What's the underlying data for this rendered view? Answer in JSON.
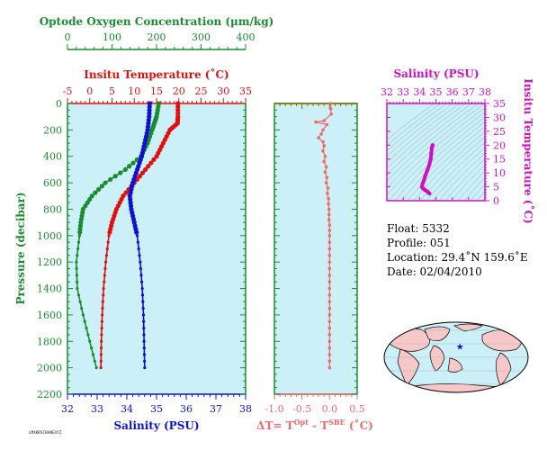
{
  "colors": {
    "oxygen": "#1a8c2e",
    "temperature": "#e01010",
    "salinity": "#1010d0",
    "delta": "#f06a6a",
    "ts": "#d010c0",
    "panel_bg": "#ccf0f8",
    "land": "#f8c8c8"
  },
  "info": {
    "float": "Float:  5332",
    "profile": "Profile:  051",
    "location": "Location:  29.4˚N  159.6˚E",
    "date": "Date:  02/04/2010"
  },
  "footer_code": "LMXBRSCBANEXYZ",
  "chart_data": [
    {
      "type": "line",
      "name": "profile",
      "ylabel": "Pressure (decibar)",
      "ylim": [
        2200,
        0
      ],
      "yticks": [
        "0",
        "200",
        "400",
        "600",
        "800",
        "1000",
        "1200",
        "1400",
        "1600",
        "1800",
        "2000",
        "2200"
      ],
      "axes": {
        "oxygen": {
          "label": "Optode Oxygen Concentration (μm/kg)",
          "range": [
            0,
            400
          ],
          "ticks": [
            "0",
            "100",
            "200",
            "300",
            "400"
          ]
        },
        "temperature": {
          "label": "Insitu Temperature (˚C)",
          "range": [
            -5,
            35
          ],
          "ticks": [
            "-5",
            "0",
            "5",
            "10",
            "15",
            "20",
            "25",
            "30",
            "35"
          ]
        },
        "salinity": {
          "label": "Salinity (PSU)",
          "range": [
            32,
            38
          ],
          "ticks": [
            "32",
            "33",
            "34",
            "35",
            "36",
            "37",
            "38"
          ]
        }
      },
      "series": [
        {
          "key": "temperature",
          "points": [
            [
              19.8,
              0
            ],
            [
              19.8,
              100
            ],
            [
              19.7,
              150
            ],
            [
              18,
              200
            ],
            [
              16.5,
              300
            ],
            [
              15,
              400
            ],
            [
              12.5,
              500
            ],
            [
              10,
              600
            ],
            [
              7.5,
              700
            ],
            [
              6,
              800
            ],
            [
              5,
              900
            ],
            [
              4.3,
              1000
            ],
            [
              3.6,
              1200
            ],
            [
              3.1,
              1400
            ],
            [
              2.8,
              1600
            ],
            [
              2.6,
              1800
            ],
            [
              2.5,
              2000
            ]
          ]
        },
        {
          "key": "oxygen",
          "points": [
            [
              205,
              0
            ],
            [
              200,
              100
            ],
            [
              195,
              150
            ],
            [
              190,
              200
            ],
            [
              180,
              300
            ],
            [
              165,
              400
            ],
            [
              130,
              500
            ],
            [
              85,
              600
            ],
            [
              55,
              700
            ],
            [
              35,
              800
            ],
            [
              30,
              900
            ],
            [
              27,
              1000
            ],
            [
              20,
              1200
            ],
            [
              22,
              1400
            ],
            [
              35,
              1600
            ],
            [
              50,
              1800
            ],
            [
              65,
              2000
            ]
          ]
        },
        {
          "key": "salinity",
          "points": [
            [
              34.77,
              0
            ],
            [
              34.75,
              100
            ],
            [
              34.7,
              200
            ],
            [
              34.6,
              300
            ],
            [
              34.5,
              400
            ],
            [
              34.35,
              500
            ],
            [
              34.2,
              600
            ],
            [
              34.1,
              700
            ],
            [
              34.15,
              800
            ],
            [
              34.25,
              900
            ],
            [
              34.35,
              1000
            ],
            [
              34.45,
              1200
            ],
            [
              34.52,
              1400
            ],
            [
              34.56,
              1600
            ],
            [
              34.58,
              1800
            ],
            [
              34.6,
              2000
            ]
          ]
        }
      ]
    },
    {
      "type": "scatter",
      "name": "delta_t",
      "xlabel": "ΔT= T",
      "xlabel_sup1": "Opt",
      "xlabel_mid": " - T",
      "xlabel_sup2": "SBE",
      "xlabel_end": " (˚C)",
      "xlim": [
        -1.0,
        0.5
      ],
      "xticks": [
        "-1.0",
        "-0.5",
        "0.0",
        "0.5"
      ],
      "points": [
        [
          0.02,
          0
        ],
        [
          0.02,
          40
        ],
        [
          0.03,
          80
        ],
        [
          -0.1,
          130
        ],
        [
          -0.25,
          140
        ],
        [
          -0.05,
          160
        ],
        [
          -0.12,
          200
        ],
        [
          -0.15,
          230
        ],
        [
          -0.2,
          260
        ],
        [
          -0.12,
          290
        ],
        [
          -0.1,
          320
        ],
        [
          -0.12,
          360
        ],
        [
          -0.08,
          400
        ],
        [
          -0.1,
          440
        ],
        [
          -0.06,
          480
        ],
        [
          -0.08,
          520
        ],
        [
          -0.05,
          560
        ],
        [
          -0.06,
          600
        ],
        [
          -0.03,
          640
        ],
        [
          -0.04,
          680
        ],
        [
          -0.02,
          720
        ],
        [
          -0.02,
          760
        ],
        [
          -0.01,
          800
        ],
        [
          -0.01,
          840
        ],
        [
          -0.01,
          880
        ],
        [
          0,
          920
        ],
        [
          0,
          960
        ],
        [
          0,
          1000
        ],
        [
          0,
          1050
        ],
        [
          0,
          1100
        ],
        [
          0,
          1150
        ],
        [
          0,
          1200
        ],
        [
          0,
          1250
        ],
        [
          0,
          1300
        ],
        [
          0,
          1350
        ],
        [
          0,
          1400
        ],
        [
          0,
          1450
        ],
        [
          0,
          1500
        ],
        [
          0,
          1550
        ],
        [
          0,
          1600
        ],
        [
          0,
          1650
        ],
        [
          0,
          1700
        ],
        [
          0,
          1750
        ],
        [
          0,
          1800
        ],
        [
          0,
          1850
        ],
        [
          0,
          1900
        ],
        [
          0,
          1950
        ],
        [
          0,
          2000
        ]
      ]
    },
    {
      "type": "scatter",
      "name": "ts_diagram",
      "xlabel": "Salinity (PSU)",
      "ylabel": "Insitu Temperature (˚C)",
      "xlim": [
        32,
        38
      ],
      "ylim": [
        0,
        35
      ],
      "xticks": [
        "32",
        "33",
        "34",
        "35",
        "36",
        "37",
        "38"
      ],
      "yticks": [
        "0",
        "5",
        "10",
        "15",
        "20",
        "25",
        "30",
        "35"
      ],
      "points": [
        [
          34.8,
          20
        ],
        [
          34.75,
          19
        ],
        [
          34.72,
          17
        ],
        [
          34.68,
          15
        ],
        [
          34.6,
          13
        ],
        [
          34.48,
          11
        ],
        [
          34.35,
          9
        ],
        [
          34.25,
          7
        ],
        [
          34.18,
          6
        ],
        [
          34.15,
          5
        ],
        [
          34.2,
          4.5
        ],
        [
          34.3,
          4
        ],
        [
          34.4,
          3.6
        ],
        [
          34.5,
          3.2
        ],
        [
          34.55,
          2.9
        ],
        [
          34.6,
          2.6
        ]
      ]
    }
  ]
}
